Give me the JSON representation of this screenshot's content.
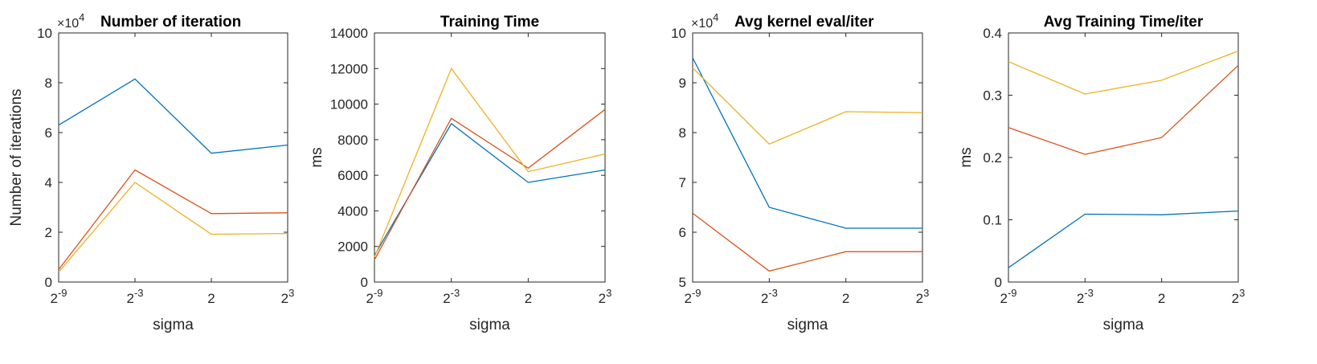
{
  "figure": {
    "axis_color": "#262626",
    "series_colors": [
      "#0072BD",
      "#D95319",
      "#EDB120"
    ]
  },
  "chart_data": [
    {
      "type": "line",
      "title": "Number of iteration",
      "xlabel": "sigma",
      "ylabel": "Number of iterations",
      "exponent": {
        "prefix": "×10",
        "power": "4"
      },
      "x_ticks": [
        {
          "base": "2",
          "power": "-9"
        },
        {
          "base": "2",
          "power": "-3"
        },
        {
          "base": "2",
          "power": ""
        },
        {
          "base": "2",
          "power": "3"
        }
      ],
      "ylim": [
        0,
        10
      ],
      "y_ticks": [
        "0",
        "2",
        "4",
        "6",
        "8",
        "10"
      ],
      "y_tick_values": [
        0,
        2,
        4,
        6,
        8,
        10
      ],
      "series": [
        {
          "values": [
            6.3,
            8.15,
            5.17,
            5.5
          ]
        },
        {
          "values": [
            0.5,
            4.5,
            2.75,
            2.78
          ]
        },
        {
          "values": [
            0.4,
            4.0,
            1.92,
            1.95
          ]
        }
      ]
    },
    {
      "type": "line",
      "title": "Training Time",
      "xlabel": "sigma",
      "ylabel": "ms",
      "x_ticks": [
        {
          "base": "2",
          "power": "-9"
        },
        {
          "base": "2",
          "power": "-3"
        },
        {
          "base": "2",
          "power": ""
        },
        {
          "base": "2",
          "power": "3"
        }
      ],
      "ylim": [
        0,
        14000
      ],
      "y_ticks": [
        "0",
        "2000",
        "4000",
        "6000",
        "8000",
        "10000",
        "12000",
        "14000"
      ],
      "y_tick_values": [
        0,
        2000,
        4000,
        6000,
        8000,
        10000,
        12000,
        14000
      ],
      "series": [
        {
          "values": [
            1500,
            8900,
            5600,
            6300
          ]
        },
        {
          "values": [
            1250,
            9200,
            6400,
            9700
          ]
        },
        {
          "values": [
            1400,
            12000,
            6200,
            7200
          ]
        }
      ]
    },
    {
      "type": "line",
      "title": "Avg kernel eval/iter",
      "xlabel": "sigma",
      "ylabel": "",
      "exponent": {
        "prefix": "×10",
        "power": "4"
      },
      "x_ticks": [
        {
          "base": "2",
          "power": "-9"
        },
        {
          "base": "2",
          "power": "-3"
        },
        {
          "base": "2",
          "power": ""
        },
        {
          "base": "2",
          "power": "3"
        }
      ],
      "ylim": [
        5,
        10
      ],
      "y_ticks": [
        "5",
        "6",
        "7",
        "8",
        "9",
        "10"
      ],
      "y_tick_values": [
        5,
        6,
        7,
        8,
        9,
        10
      ],
      "series": [
        {
          "values": [
            9.5,
            6.5,
            6.08,
            6.08
          ]
        },
        {
          "values": [
            6.38,
            5.22,
            5.61,
            5.61
          ]
        },
        {
          "values": [
            9.3,
            7.77,
            8.42,
            8.4
          ]
        }
      ]
    },
    {
      "type": "line",
      "title": "Avg Training Time/iter",
      "xlabel": "sigma",
      "ylabel": "ms",
      "x_ticks": [
        {
          "base": "2",
          "power": "-9"
        },
        {
          "base": "2",
          "power": "-3"
        },
        {
          "base": "2",
          "power": ""
        },
        {
          "base": "2",
          "power": "3"
        }
      ],
      "ylim": [
        0,
        0.4
      ],
      "y_ticks": [
        "0",
        "0.1",
        "0.2",
        "0.3",
        "0.4"
      ],
      "y_tick_values": [
        0,
        0.1,
        0.2,
        0.3,
        0.4
      ],
      "series": [
        {
          "values": [
            0.023,
            0.109,
            0.108,
            0.114
          ]
        },
        {
          "values": [
            0.248,
            0.205,
            0.232,
            0.348
          ]
        },
        {
          "values": [
            0.354,
            0.302,
            0.324,
            0.371
          ]
        }
      ]
    }
  ]
}
